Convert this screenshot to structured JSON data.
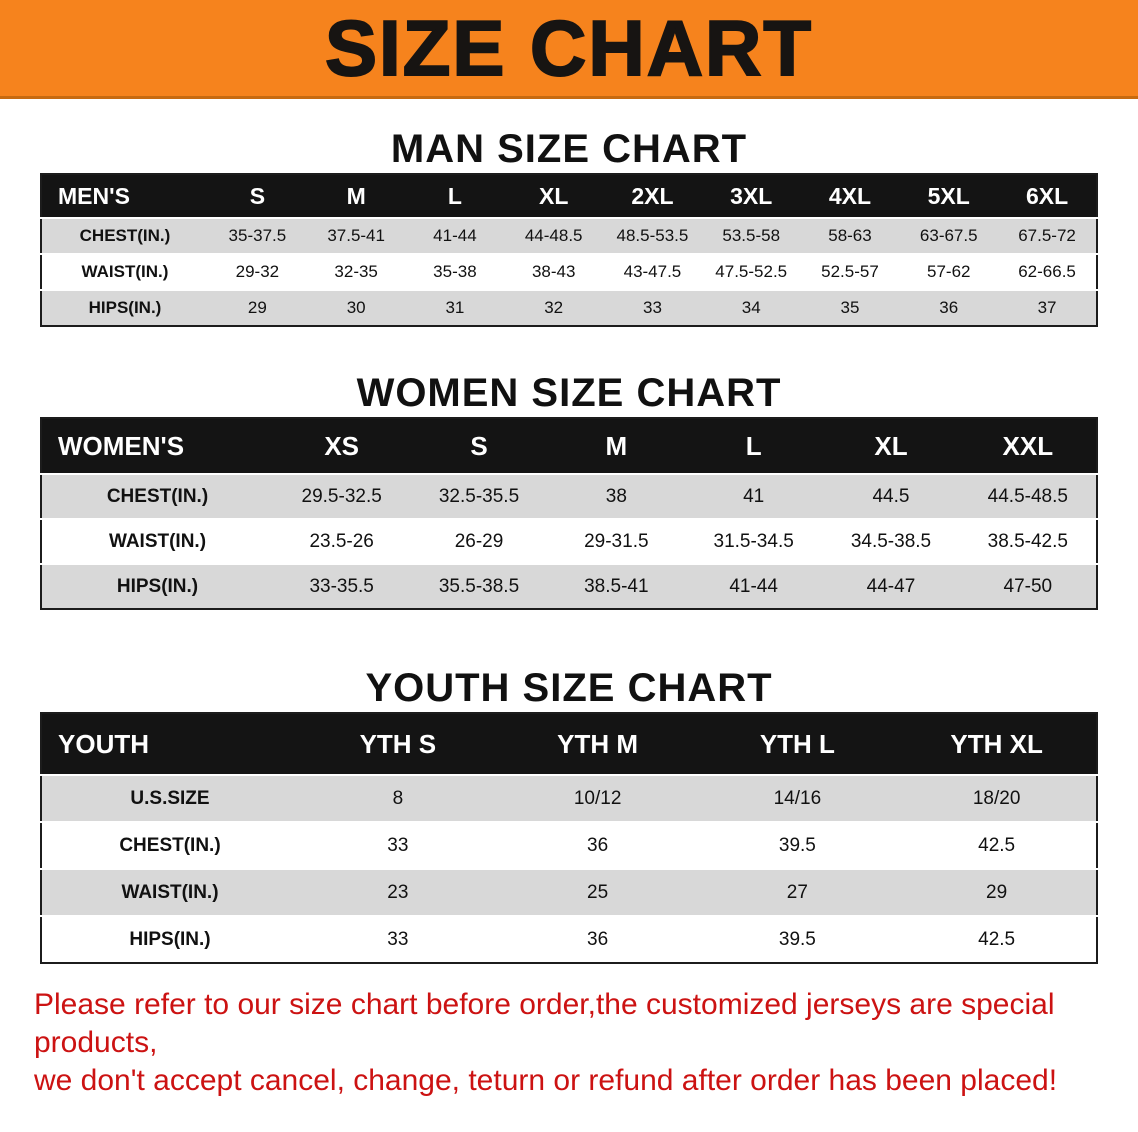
{
  "banner": {
    "title": "SIZE CHART"
  },
  "sections": [
    {
      "title": "MAN SIZE CHART",
      "header": [
        "MEN'S",
        "S",
        "M",
        "L",
        "XL",
        "2XL",
        "3XL",
        "4XL",
        "5XL",
        "6XL"
      ],
      "rows": [
        [
          "CHEST(IN.)",
          "35-37.5",
          "37.5-41",
          "41-44",
          "44-48.5",
          "48.5-53.5",
          "53.5-58",
          "58-63",
          "63-67.5",
          "67.5-72"
        ],
        [
          "WAIST(IN.)",
          "29-32",
          "32-35",
          "35-38",
          "38-43",
          "43-47.5",
          "47.5-52.5",
          "52.5-57",
          "57-62",
          "62-66.5"
        ],
        [
          "HIPS(IN.)",
          "29",
          "30",
          "31",
          "32",
          "33",
          "34",
          "35",
          "36",
          "37"
        ]
      ]
    },
    {
      "title": "WOMEN SIZE CHART",
      "header": [
        "WOMEN'S",
        "XS",
        "S",
        "M",
        "L",
        "XL",
        "XXL"
      ],
      "rows": [
        [
          "CHEST(IN.)",
          "29.5-32.5",
          "32.5-35.5",
          "38",
          "41",
          "44.5",
          "44.5-48.5"
        ],
        [
          "WAIST(IN.)",
          "23.5-26",
          "26-29",
          "29-31.5",
          "31.5-34.5",
          "34.5-38.5",
          "38.5-42.5"
        ],
        [
          "HIPS(IN.)",
          "33-35.5",
          "35.5-38.5",
          "38.5-41",
          "41-44",
          "44-47",
          "47-50"
        ]
      ]
    },
    {
      "title": "YOUTH SIZE CHART",
      "header": [
        "YOUTH",
        "YTH S",
        "YTH M",
        "YTH L",
        "YTH XL"
      ],
      "rows": [
        [
          "U.S.SIZE",
          "8",
          "10/12",
          "14/16",
          "18/20"
        ],
        [
          "CHEST(IN.)",
          "33",
          "36",
          "39.5",
          "42.5"
        ],
        [
          "WAIST(IN.)",
          "23",
          "25",
          "27",
          "29"
        ],
        [
          "HIPS(IN.)",
          "33",
          "36",
          "39.5",
          "42.5"
        ]
      ]
    }
  ],
  "disclaimer": {
    "line1": "Please refer to our size chart before order,the customized jerseys are special products,",
    "line2": "we don't accept cancel, change, teturn or refund after order has been placed!"
  },
  "colors": {
    "banner_bg": "#f6831d",
    "table_header_bg": "#141414",
    "row_stripe": "#d8d8d8",
    "disclaimer_text": "#cc1212",
    "title_text": "#111111"
  }
}
